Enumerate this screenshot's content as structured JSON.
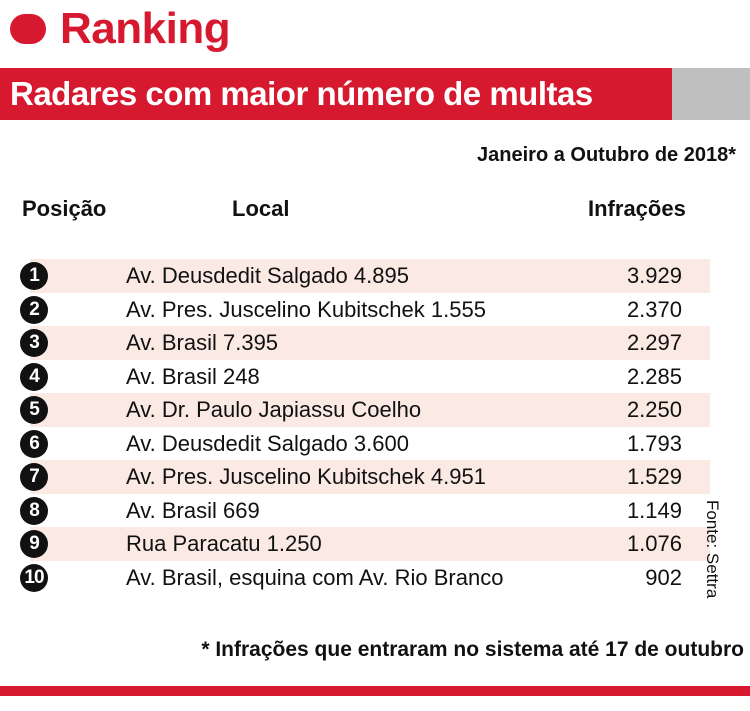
{
  "section": {
    "title": "Ranking",
    "accent_color": "#d71930",
    "marker_icon": "red-rounded-marker"
  },
  "banner": {
    "title": "Radares com maior número de multas",
    "bg_color": "#d71930",
    "tab_color": "#bfbfbf"
  },
  "period": "Janeiro a Outubro de 2018*",
  "headers": {
    "position": "Posição",
    "location": "Local",
    "infractions": "Infrações"
  },
  "rows": [
    {
      "rank": "1",
      "location": "Av. Deusdedit Salgado 4.895",
      "infractions": "3.929"
    },
    {
      "rank": "2",
      "location": "Av. Pres. Juscelino Kubitschek 1.555",
      "infractions": "2.370"
    },
    {
      "rank": "3",
      "location": "Av. Brasil 7.395",
      "infractions": "2.297"
    },
    {
      "rank": "4",
      "location": "Av. Brasil 248",
      "infractions": "2.285"
    },
    {
      "rank": "5",
      "location": "Av. Dr. Paulo Japiassu Coelho",
      "infractions": "2.250"
    },
    {
      "rank": "6",
      "location": "Av. Deusdedit Salgado 3.600",
      "infractions": "1.793"
    },
    {
      "rank": "7",
      "location": "Av. Pres. Juscelino Kubitschek 4.951",
      "infractions": "1.529"
    },
    {
      "rank": "8",
      "location": "Av. Brasil 669",
      "infractions": "1.149"
    },
    {
      "rank": "9",
      "location": "Rua Paracatu 1.250",
      "infractions": "1.076"
    },
    {
      "rank": "10",
      "location": "Av. Brasil, esquina com Av. Rio Branco",
      "infractions": "902"
    }
  ],
  "row_shade_color": "#fbeae3",
  "source": "Fonte: Settra",
  "footnote": "* Infrações que entraram no sistema até 17 de outubro"
}
